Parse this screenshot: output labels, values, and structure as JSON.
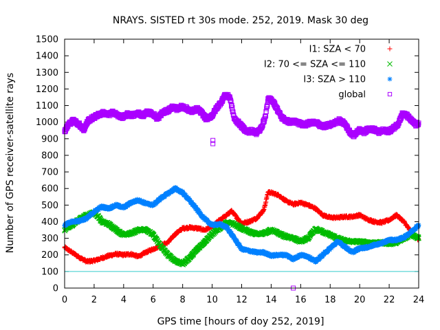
{
  "chart_data": {
    "type": "scatter",
    "title": "NRAYS. SISTED rt 30s mode. 252, 2019. Mask 30 deg",
    "xlabel": "GPS time [hours of doy 252, 2019]",
    "ylabel": "Number of GPS receiver-satellite rays",
    "xlim": [
      0,
      24
    ],
    "ylim": [
      0,
      1500
    ],
    "xticks": [
      0,
      2,
      4,
      6,
      8,
      10,
      12,
      14,
      16,
      18,
      20,
      22,
      24
    ],
    "yticks": [
      0,
      100,
      200,
      300,
      400,
      500,
      600,
      700,
      800,
      900,
      1000,
      1100,
      1200,
      1300,
      1400,
      1500
    ],
    "grid": false,
    "legend_position": "top-right",
    "reference_line": {
      "y": 100,
      "color": "#33cccc"
    },
    "series": [
      {
        "name": "I1: SZA < 70",
        "marker": "+",
        "color": "#ff0000",
        "points": [
          {
            "x": 0,
            "y": 245
          },
          {
            "x": 0.5,
            "y": 215
          },
          {
            "x": 1,
            "y": 185
          },
          {
            "x": 1.5,
            "y": 160
          },
          {
            "x": 2,
            "y": 165
          },
          {
            "x": 2.5,
            "y": 180
          },
          {
            "x": 3,
            "y": 195
          },
          {
            "x": 3.5,
            "y": 205
          },
          {
            "x": 4,
            "y": 200
          },
          {
            "x": 4.5,
            "y": 205
          },
          {
            "x": 5,
            "y": 190
          },
          {
            "x": 5.5,
            "y": 215
          },
          {
            "x": 6,
            "y": 235
          },
          {
            "x": 6.5,
            "y": 255
          },
          {
            "x": 7,
            "y": 275
          },
          {
            "x": 7.5,
            "y": 325
          },
          {
            "x": 8,
            "y": 360
          },
          {
            "x": 8.5,
            "y": 365
          },
          {
            "x": 9,
            "y": 360
          },
          {
            "x": 9.5,
            "y": 350
          },
          {
            "x": 10,
            "y": 370
          },
          {
            "x": 10.5,
            "y": 410
          },
          {
            "x": 11,
            "y": 440
          },
          {
            "x": 11.3,
            "y": 465
          },
          {
            "x": 12,
            "y": 390
          },
          {
            "x": 12.5,
            "y": 400
          },
          {
            "x": 13,
            "y": 420
          },
          {
            "x": 13.5,
            "y": 470
          },
          {
            "x": 13.8,
            "y": 580
          },
          {
            "x": 14.5,
            "y": 560
          },
          {
            "x": 15,
            "y": 525
          },
          {
            "x": 15.5,
            "y": 505
          },
          {
            "x": 16,
            "y": 515
          },
          {
            "x": 16.5,
            "y": 500
          },
          {
            "x": 17,
            "y": 480
          },
          {
            "x": 17.5,
            "y": 440
          },
          {
            "x": 18,
            "y": 425
          },
          {
            "x": 18.5,
            "y": 425
          },
          {
            "x": 19,
            "y": 430
          },
          {
            "x": 19.5,
            "y": 430
          },
          {
            "x": 20,
            "y": 440
          },
          {
            "x": 20.5,
            "y": 415
          },
          {
            "x": 21,
            "y": 400
          },
          {
            "x": 21.5,
            "y": 395
          },
          {
            "x": 22,
            "y": 410
          },
          {
            "x": 22.5,
            "y": 440
          },
          {
            "x": 23,
            "y": 400
          },
          {
            "x": 23.5,
            "y": 335
          },
          {
            "x": 24,
            "y": 290
          }
        ]
      },
      {
        "name": "I2: 70 <= SZA <= 110",
        "marker": "x",
        "color": "#00bb00",
        "points": [
          {
            "x": 0,
            "y": 350
          },
          {
            "x": 0.5,
            "y": 380
          },
          {
            "x": 1,
            "y": 415
          },
          {
            "x": 1.5,
            "y": 440
          },
          {
            "x": 2,
            "y": 455
          },
          {
            "x": 2.3,
            "y": 430
          },
          {
            "x": 2.5,
            "y": 400
          },
          {
            "x": 3,
            "y": 385
          },
          {
            "x": 3.5,
            "y": 350
          },
          {
            "x": 4,
            "y": 320
          },
          {
            "x": 4.5,
            "y": 330
          },
          {
            "x": 5,
            "y": 350
          },
          {
            "x": 5.5,
            "y": 355
          },
          {
            "x": 6,
            "y": 320
          },
          {
            "x": 6.5,
            "y": 255
          },
          {
            "x": 7,
            "y": 200
          },
          {
            "x": 7.5,
            "y": 165
          },
          {
            "x": 8,
            "y": 145
          },
          {
            "x": 8.5,
            "y": 185
          },
          {
            "x": 9,
            "y": 235
          },
          {
            "x": 9.5,
            "y": 280
          },
          {
            "x": 10,
            "y": 325
          },
          {
            "x": 10.5,
            "y": 360
          },
          {
            "x": 11,
            "y": 395
          },
          {
            "x": 11.5,
            "y": 385
          },
          {
            "x": 12,
            "y": 360
          },
          {
            "x": 12.5,
            "y": 340
          },
          {
            "x": 13,
            "y": 325
          },
          {
            "x": 13.5,
            "y": 330
          },
          {
            "x": 14,
            "y": 350
          },
          {
            "x": 14.5,
            "y": 330
          },
          {
            "x": 15,
            "y": 310
          },
          {
            "x": 15.5,
            "y": 300
          },
          {
            "x": 16,
            "y": 280
          },
          {
            "x": 16.5,
            "y": 300
          },
          {
            "x": 17,
            "y": 355
          },
          {
            "x": 17.5,
            "y": 340
          },
          {
            "x": 18,
            "y": 320
          },
          {
            "x": 18.5,
            "y": 300
          },
          {
            "x": 19,
            "y": 285
          },
          {
            "x": 19.5,
            "y": 280
          },
          {
            "x": 20,
            "y": 280
          },
          {
            "x": 20.5,
            "y": 275
          },
          {
            "x": 21,
            "y": 270
          },
          {
            "x": 21.5,
            "y": 275
          },
          {
            "x": 22,
            "y": 265
          },
          {
            "x": 22.5,
            "y": 275
          },
          {
            "x": 23,
            "y": 300
          },
          {
            "x": 23.5,
            "y": 325
          },
          {
            "x": 24,
            "y": 300
          }
        ]
      },
      {
        "name": "I3: SZA > 110",
        "marker": "*",
        "color": "#0080ff",
        "points": [
          {
            "x": 0,
            "y": 380
          },
          {
            "x": 0.5,
            "y": 400
          },
          {
            "x": 1,
            "y": 405
          },
          {
            "x": 1.5,
            "y": 420
          },
          {
            "x": 2,
            "y": 460
          },
          {
            "x": 2.5,
            "y": 490
          },
          {
            "x": 3,
            "y": 480
          },
          {
            "x": 3.5,
            "y": 500
          },
          {
            "x": 4,
            "y": 485
          },
          {
            "x": 4.5,
            "y": 515
          },
          {
            "x": 5,
            "y": 530
          },
          {
            "x": 5.5,
            "y": 510
          },
          {
            "x": 6,
            "y": 500
          },
          {
            "x": 6.5,
            "y": 540
          },
          {
            "x": 7,
            "y": 570
          },
          {
            "x": 7.5,
            "y": 600
          },
          {
            "x": 8,
            "y": 575
          },
          {
            "x": 8.5,
            "y": 525
          },
          {
            "x": 9,
            "y": 470
          },
          {
            "x": 9.5,
            "y": 415
          },
          {
            "x": 10,
            "y": 380
          },
          {
            "x": 10.5,
            "y": 385
          },
          {
            "x": 11,
            "y": 365
          },
          {
            "x": 11.5,
            "y": 300
          },
          {
            "x": 12,
            "y": 235
          },
          {
            "x": 12.5,
            "y": 225
          },
          {
            "x": 13,
            "y": 215
          },
          {
            "x": 13.5,
            "y": 215
          },
          {
            "x": 14,
            "y": 195
          },
          {
            "x": 14.5,
            "y": 200
          },
          {
            "x": 15,
            "y": 200
          },
          {
            "x": 15.5,
            "y": 175
          },
          {
            "x": 16,
            "y": 200
          },
          {
            "x": 16.5,
            "y": 190
          },
          {
            "x": 17,
            "y": 160
          },
          {
            "x": 17.5,
            "y": 200
          },
          {
            "x": 18,
            "y": 240
          },
          {
            "x": 18.5,
            "y": 280
          },
          {
            "x": 19,
            "y": 250
          },
          {
            "x": 19.5,
            "y": 215
          },
          {
            "x": 20,
            "y": 240
          },
          {
            "x": 20.5,
            "y": 245
          },
          {
            "x": 21,
            "y": 260
          },
          {
            "x": 21.5,
            "y": 270
          },
          {
            "x": 22,
            "y": 290
          },
          {
            "x": 22.5,
            "y": 290
          },
          {
            "x": 23,
            "y": 305
          },
          {
            "x": 23.5,
            "y": 340
          },
          {
            "x": 24,
            "y": 380
          }
        ]
      },
      {
        "name": "global",
        "marker": "square",
        "color": "#aa00ff",
        "points": [
          {
            "x": 0,
            "y": 945
          },
          {
            "x": 0.3,
            "y": 990
          },
          {
            "x": 0.6,
            "y": 1010
          },
          {
            "x": 1,
            "y": 985
          },
          {
            "x": 1.3,
            "y": 955
          },
          {
            "x": 1.6,
            "y": 1010
          },
          {
            "x": 2,
            "y": 1030
          },
          {
            "x": 2.3,
            "y": 1045
          },
          {
            "x": 2.6,
            "y": 1055
          },
          {
            "x": 3,
            "y": 1045
          },
          {
            "x": 3.3,
            "y": 1060
          },
          {
            "x": 3.6,
            "y": 1040
          },
          {
            "x": 4,
            "y": 1030
          },
          {
            "x": 4.3,
            "y": 1050
          },
          {
            "x": 4.6,
            "y": 1040
          },
          {
            "x": 5,
            "y": 1055
          },
          {
            "x": 5.3,
            "y": 1040
          },
          {
            "x": 5.6,
            "y": 1060
          },
          {
            "x": 6,
            "y": 1050
          },
          {
            "x": 6.3,
            "y": 1020
          },
          {
            "x": 6.6,
            "y": 1055
          },
          {
            "x": 7,
            "y": 1070
          },
          {
            "x": 7.3,
            "y": 1090
          },
          {
            "x": 7.6,
            "y": 1080
          },
          {
            "x": 8,
            "y": 1095
          },
          {
            "x": 8.3,
            "y": 1080
          },
          {
            "x": 8.6,
            "y": 1065
          },
          {
            "x": 9,
            "y": 1080
          },
          {
            "x": 9.3,
            "y": 1055
          },
          {
            "x": 9.6,
            "y": 1020
          },
          {
            "x": 10,
            "y": 1040
          },
          {
            "x": 10.3,
            "y": 1085
          },
          {
            "x": 10.6,
            "y": 1120
          },
          {
            "x": 10.9,
            "y": 1165
          },
          {
            "x": 11.2,
            "y": 1150
          },
          {
            "x": 11.5,
            "y": 1020
          },
          {
            "x": 11.8,
            "y": 995
          },
          {
            "x": 12.1,
            "y": 965
          },
          {
            "x": 12.4,
            "y": 940
          },
          {
            "x": 12.7,
            "y": 950
          },
          {
            "x": 13,
            "y": 935
          },
          {
            "x": 13.3,
            "y": 960
          },
          {
            "x": 13.6,
            "y": 1030
          },
          {
            "x": 13.8,
            "y": 1140
          },
          {
            "x": 14.1,
            "y": 1130
          },
          {
            "x": 14.4,
            "y": 1080
          },
          {
            "x": 14.7,
            "y": 1030
          },
          {
            "x": 15,
            "y": 1010
          },
          {
            "x": 15.3,
            "y": 1000
          },
          {
            "x": 15.6,
            "y": 1005
          },
          {
            "x": 16,
            "y": 990
          },
          {
            "x": 16.3,
            "y": 985
          },
          {
            "x": 16.6,
            "y": 995
          },
          {
            "x": 17,
            "y": 1000
          },
          {
            "x": 17.3,
            "y": 980
          },
          {
            "x": 17.6,
            "y": 975
          },
          {
            "x": 18,
            "y": 985
          },
          {
            "x": 18.3,
            "y": 995
          },
          {
            "x": 18.6,
            "y": 1010
          },
          {
            "x": 19,
            "y": 990
          },
          {
            "x": 19.3,
            "y": 945
          },
          {
            "x": 19.6,
            "y": 920
          },
          {
            "x": 20,
            "y": 955
          },
          {
            "x": 20.3,
            "y": 940
          },
          {
            "x": 20.6,
            "y": 960
          },
          {
            "x": 21,
            "y": 955
          },
          {
            "x": 21.3,
            "y": 940
          },
          {
            "x": 21.6,
            "y": 950
          },
          {
            "x": 22,
            "y": 945
          },
          {
            "x": 22.3,
            "y": 965
          },
          {
            "x": 22.6,
            "y": 990
          },
          {
            "x": 22.9,
            "y": 1050
          },
          {
            "x": 23.2,
            "y": 1040
          },
          {
            "x": 23.5,
            "y": 1010
          },
          {
            "x": 23.8,
            "y": 985
          },
          {
            "x": 24,
            "y": 995
          }
        ],
        "outliers": [
          {
            "x": 10.05,
            "y": 890
          },
          {
            "x": 10.05,
            "y": 870
          },
          {
            "x": 15.5,
            "y": 0
          }
        ]
      }
    ]
  }
}
